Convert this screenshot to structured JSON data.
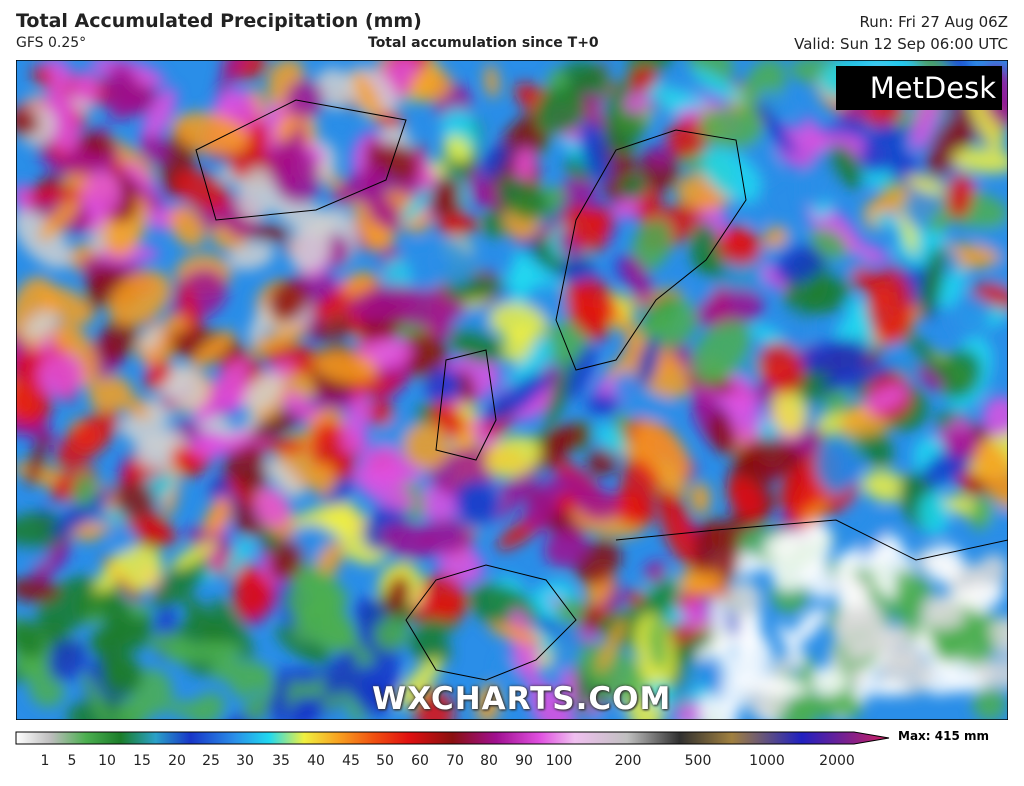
{
  "header": {
    "title": "Total Accumulated Precipitation (mm)",
    "model": "GFS 0.25°",
    "subtitle": "Total accumulation since T+0",
    "run": "Run: Fri 27 Aug 06Z",
    "valid": "Valid: Sun 12 Sep 06:00 UTC"
  },
  "logo": "MetDesk",
  "watermark": "WXCHARTS.COM",
  "legend": {
    "labels": [
      "1",
      "5",
      "10",
      "15",
      "20",
      "25",
      "30",
      "35",
      "40",
      "45",
      "50",
      "60",
      "70",
      "80",
      "90",
      "100",
      "200",
      "500",
      "1000",
      "2000"
    ],
    "max": "Max: 415 mm"
  }
}
